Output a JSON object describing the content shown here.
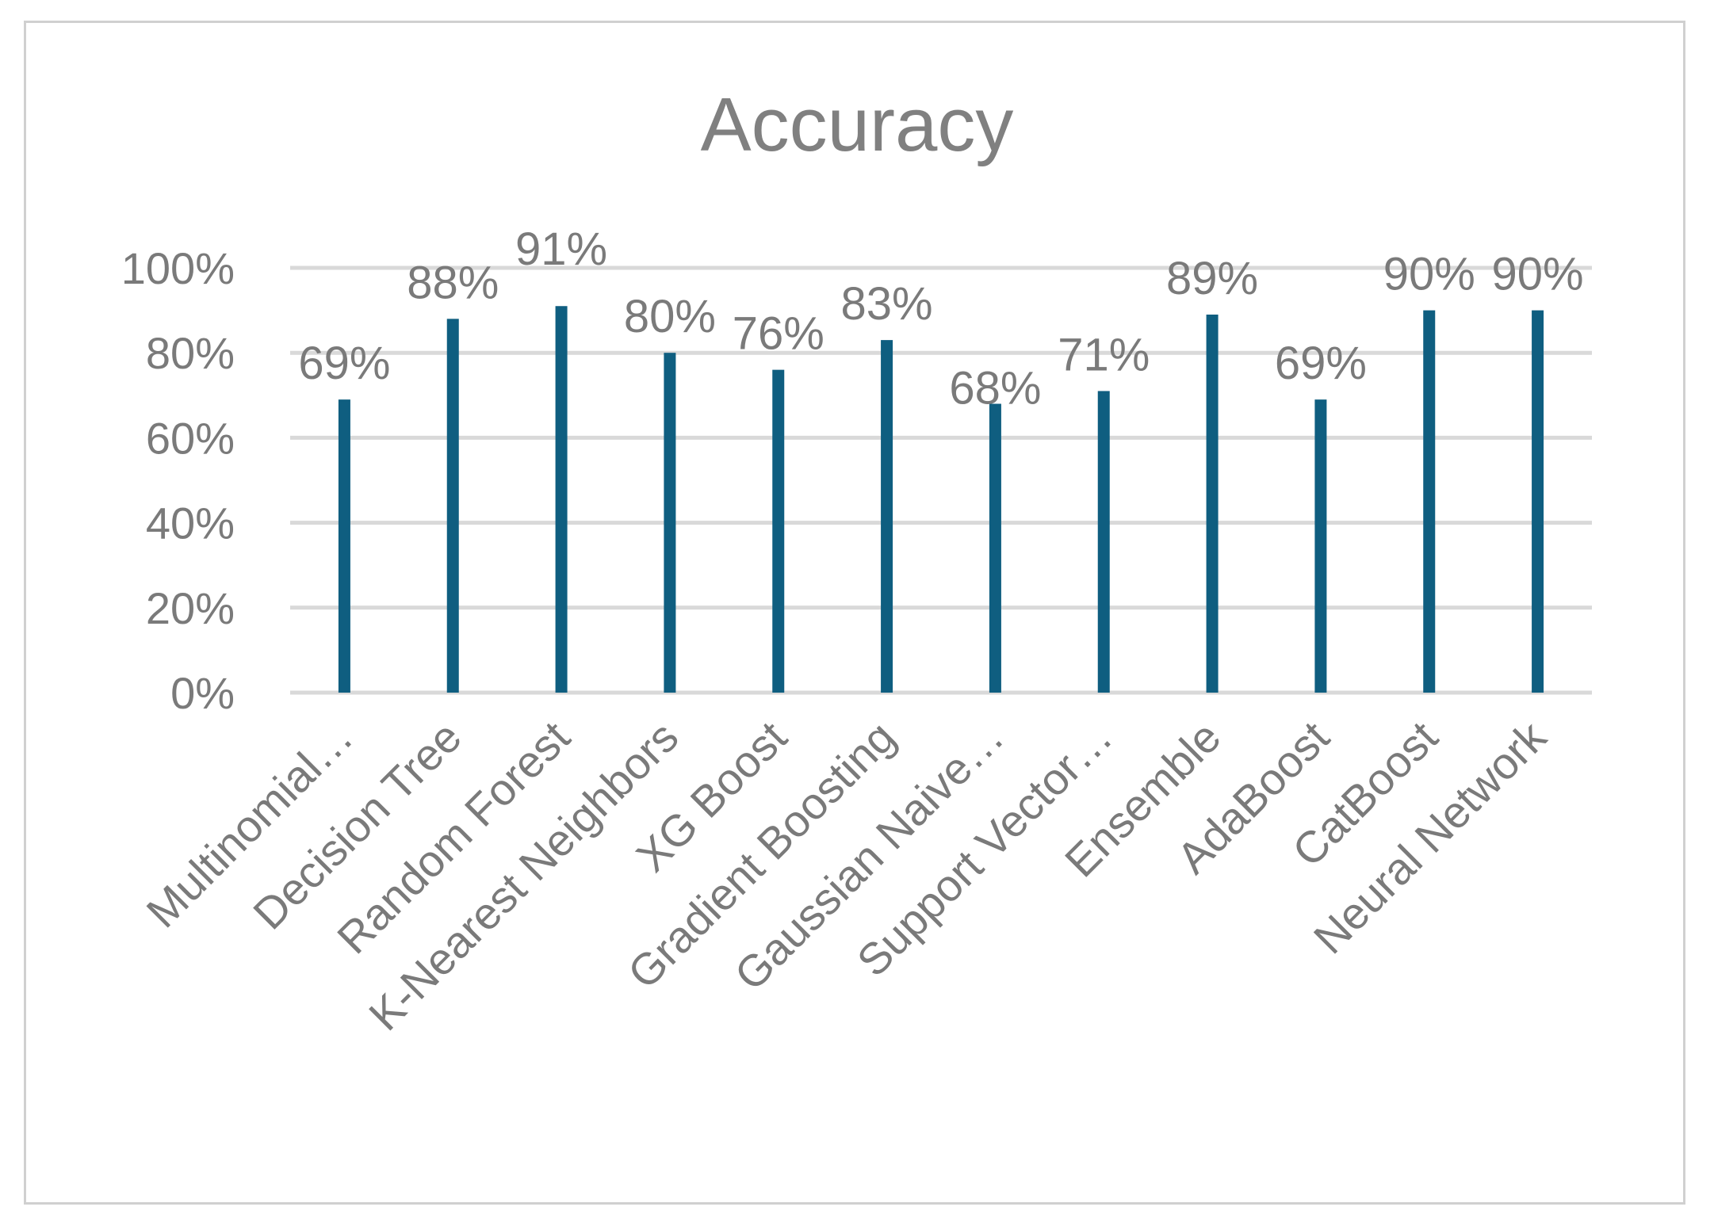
{
  "chart_data": {
    "type": "bar",
    "title": "Accuracy",
    "xlabel": "",
    "ylabel": "",
    "categories": [
      "Multinomial…",
      "Decision Tree",
      "Random Forest",
      "K-Nearest Neighbors",
      "XG Boost",
      "Gradient Boosting",
      "Gaussian Naive…",
      "Support Vector…",
      "Ensemble",
      "AdaBoost",
      "CatBoost",
      "Neural Network"
    ],
    "values": [
      69,
      88,
      91,
      80,
      76,
      83,
      68,
      71,
      89,
      69,
      90,
      90
    ],
    "data_labels": [
      "69%",
      "88%",
      "91%",
      "80%",
      "76%",
      "83%",
      "68%",
      "71%",
      "89%",
      "69%",
      "90%",
      "90%"
    ],
    "ylim": [
      0,
      100
    ],
    "yticks": [
      0,
      20,
      40,
      60,
      80,
      100
    ],
    "ytick_labels": [
      "0%",
      "20%",
      "40%",
      "60%",
      "80%",
      "100%"
    ],
    "grid": true,
    "legend": "none",
    "colors": {
      "bar": "#0f5e80",
      "grid": "#d9d9d9",
      "text": "#7a7a7a",
      "title": "#808080"
    }
  }
}
